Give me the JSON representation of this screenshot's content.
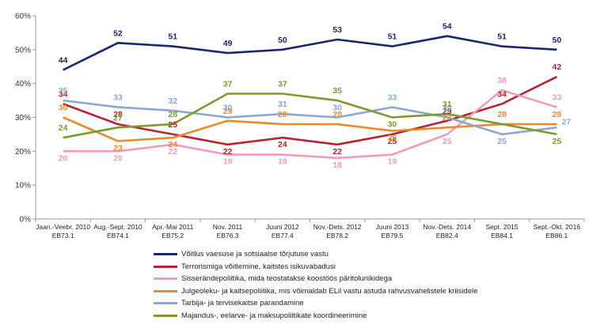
{
  "chart_data": {
    "type": "line",
    "title": "",
    "xlabel": "",
    "ylabel": "",
    "ylim": [
      0,
      60
    ],
    "yticks": [
      "0%",
      "10%",
      "20%",
      "30%",
      "40%",
      "50%",
      "60%"
    ],
    "grid": false,
    "legend_position": "bottom",
    "categories": [
      {
        "line1": "Jaan.-Veebr. 2010",
        "line2": "EB73.1"
      },
      {
        "line1": "Aug.-Sept. 2010",
        "line2": "EB74.1"
      },
      {
        "line1": "Apr.-Mai 2011",
        "line2": "EB75.2"
      },
      {
        "line1": "Nov. 2011",
        "line2": "EB76.3"
      },
      {
        "line1": "Juuni 2012",
        "line2": "EB77.4"
      },
      {
        "line1": "Nov.-Dets. 2012",
        "line2": "EB78.2"
      },
      {
        "line1": "Juuni 2013",
        "line2": "EB79.5"
      },
      {
        "line1": "Nov.-Dets. 2014",
        "line2": "EB82.4"
      },
      {
        "line1": "Sept. 2015",
        "line2": "EB84.1"
      },
      {
        "line1": "Sept.-Okt. 2016",
        "line2": "EB86.1"
      }
    ],
    "series": [
      {
        "name": "Võitlus vaesuse ja sotsiaalse tõrjutuse vastu",
        "color": "#1b2670",
        "values": [
          44,
          52,
          51,
          49,
          50,
          53,
          51,
          54,
          51,
          50
        ]
      },
      {
        "name": "Terrorismiga võitlemine, kaitstes isikuvabadusi",
        "color": "#b5252f",
        "values": [
          34,
          28,
          25,
          22,
          24,
          22,
          25,
          29,
          34,
          42
        ]
      },
      {
        "name": "Sisserändepoliitika, mida teostatakse koostöös päritoluriikidega",
        "color": "#f29ac0",
        "values": [
          20,
          20,
          22,
          19,
          19,
          18,
          19,
          25,
          38,
          33
        ]
      },
      {
        "name": "Julgeoleku- ja kaitsepoliitika, mis võimaldab ELil vastu astuda rahvusvahelistele kriisidele",
        "color": "#ec8a2b",
        "values": [
          30,
          23,
          24,
          29,
          28,
          28,
          26,
          27,
          28,
          28
        ]
      },
      {
        "name": "Tarbija- ja tervisekaitse parandamine",
        "color": "#8ba8d0",
        "values": [
          35,
          33,
          32,
          30,
          31,
          30,
          33,
          30,
          25,
          27
        ]
      },
      {
        "name": "Majandus-, eelarve- ja maksupoliitikate koordineerimine",
        "color": "#7d9a2f",
        "values": [
          24,
          27,
          28,
          37,
          37,
          35,
          30,
          31,
          null,
          25
        ]
      }
    ]
  }
}
